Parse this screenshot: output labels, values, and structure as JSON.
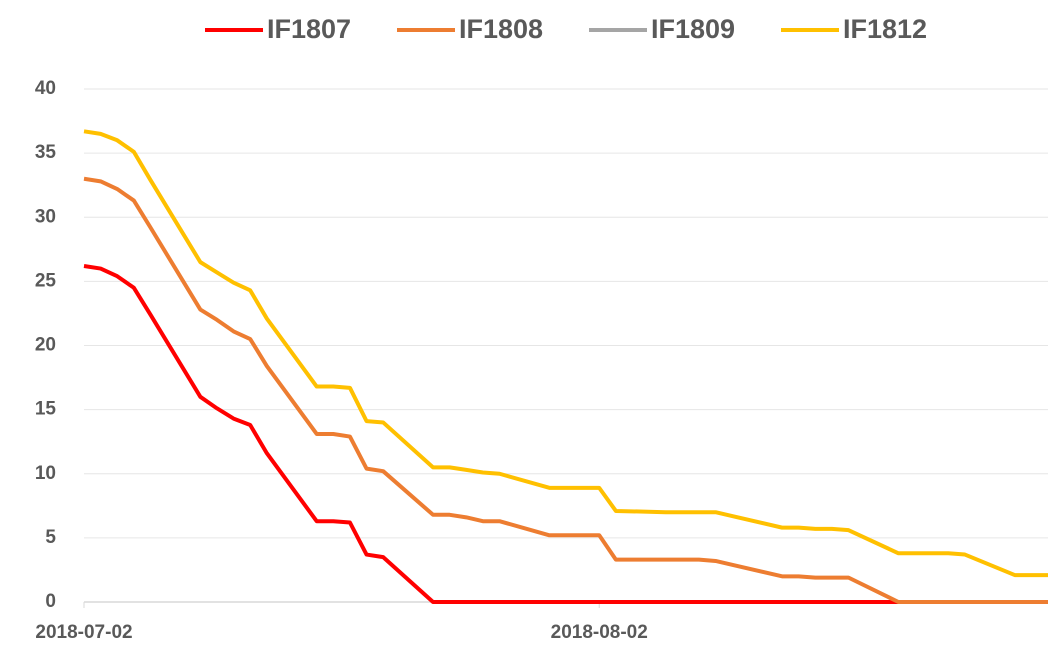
{
  "chart_data": {
    "type": "line",
    "x": [
      "2018-07-02",
      "2018-07-03",
      "2018-07-04",
      "2018-07-05",
      "2018-07-06",
      "2018-07-09",
      "2018-07-10",
      "2018-07-11",
      "2018-07-12",
      "2018-07-13",
      "2018-07-16",
      "2018-07-17",
      "2018-07-18",
      "2018-07-19",
      "2018-07-20",
      "2018-07-23",
      "2018-07-24",
      "2018-07-25",
      "2018-07-26",
      "2018-07-27",
      "2018-07-30",
      "2018-07-31",
      "2018-08-01",
      "2018-08-02",
      "2018-08-03",
      "2018-08-06",
      "2018-08-07",
      "2018-08-08",
      "2018-08-09",
      "2018-08-10",
      "2018-08-13",
      "2018-08-14",
      "2018-08-15",
      "2018-08-16",
      "2018-08-17",
      "2018-08-20",
      "2018-08-21",
      "2018-08-22",
      "2018-08-23",
      "2018-08-24",
      "2018-08-27",
      "2018-08-28",
      "2018-08-29"
    ],
    "series": [
      {
        "name": "IF1807",
        "color": "#ff0000",
        "values": [
          26.2,
          26.0,
          25.4,
          24.5,
          22.4,
          16.0,
          15.1,
          14.3,
          13.8,
          11.6,
          6.3,
          6.3,
          6.2,
          3.7,
          3.5,
          0,
          0,
          0,
          0,
          0,
          0,
          0,
          0,
          0,
          0,
          0,
          0,
          0,
          0,
          0,
          0,
          0,
          0,
          0,
          0,
          0,
          0,
          0,
          0,
          0,
          0,
          0,
          0
        ]
      },
      {
        "name": "IF1808",
        "color": "#ed7d31",
        "values": [
          33.0,
          32.8,
          32.2,
          31.3,
          29.2,
          22.8,
          22.0,
          21.1,
          20.5,
          18.4,
          13.1,
          13.1,
          12.9,
          10.4,
          10.2,
          6.8,
          6.8,
          6.6,
          6.3,
          6.3,
          5.2,
          5.2,
          5.2,
          5.2,
          3.3,
          3.3,
          3.3,
          3.3,
          3.2,
          2.9,
          2.0,
          2.0,
          1.9,
          1.9,
          1.9,
          0,
          0,
          0,
          0,
          0,
          0,
          0,
          0
        ]
      },
      {
        "name": "IF1809",
        "color": "#a5a5a5",
        "values": [
          null,
          null,
          null,
          null,
          null,
          null,
          null,
          null,
          null,
          null,
          null,
          null,
          null,
          null,
          null,
          null,
          null,
          null,
          null,
          null,
          null,
          null,
          null,
          null,
          null,
          null,
          null,
          null,
          null,
          null,
          null,
          null,
          null,
          null,
          null,
          null,
          null,
          null,
          null,
          null,
          null,
          null,
          null
        ]
      },
      {
        "name": "IF1812",
        "color": "#ffc000",
        "values": [
          36.7,
          36.5,
          36.0,
          35.1,
          32.9,
          26.5,
          25.7,
          24.9,
          24.3,
          22.1,
          16.8,
          16.8,
          16.7,
          14.1,
          14.0,
          10.5,
          10.5,
          10.3,
          10.1,
          10.0,
          8.9,
          8.9,
          8.9,
          8.9,
          7.1,
          7.0,
          7.0,
          7.0,
          7.0,
          6.7,
          5.8,
          5.8,
          5.7,
          5.7,
          5.6,
          3.8,
          3.8,
          3.8,
          3.8,
          3.7,
          2.1,
          2.1,
          2.1
        ]
      }
    ],
    "xlim": [
      "2018-07-02",
      "2018-08-29"
    ],
    "xticks": [
      "2018-07-02",
      "2018-08-02"
    ],
    "ylim": [
      0,
      40
    ],
    "yticks": [
      0,
      5,
      10,
      15,
      20,
      25,
      30,
      35,
      40
    ],
    "grid": true
  }
}
